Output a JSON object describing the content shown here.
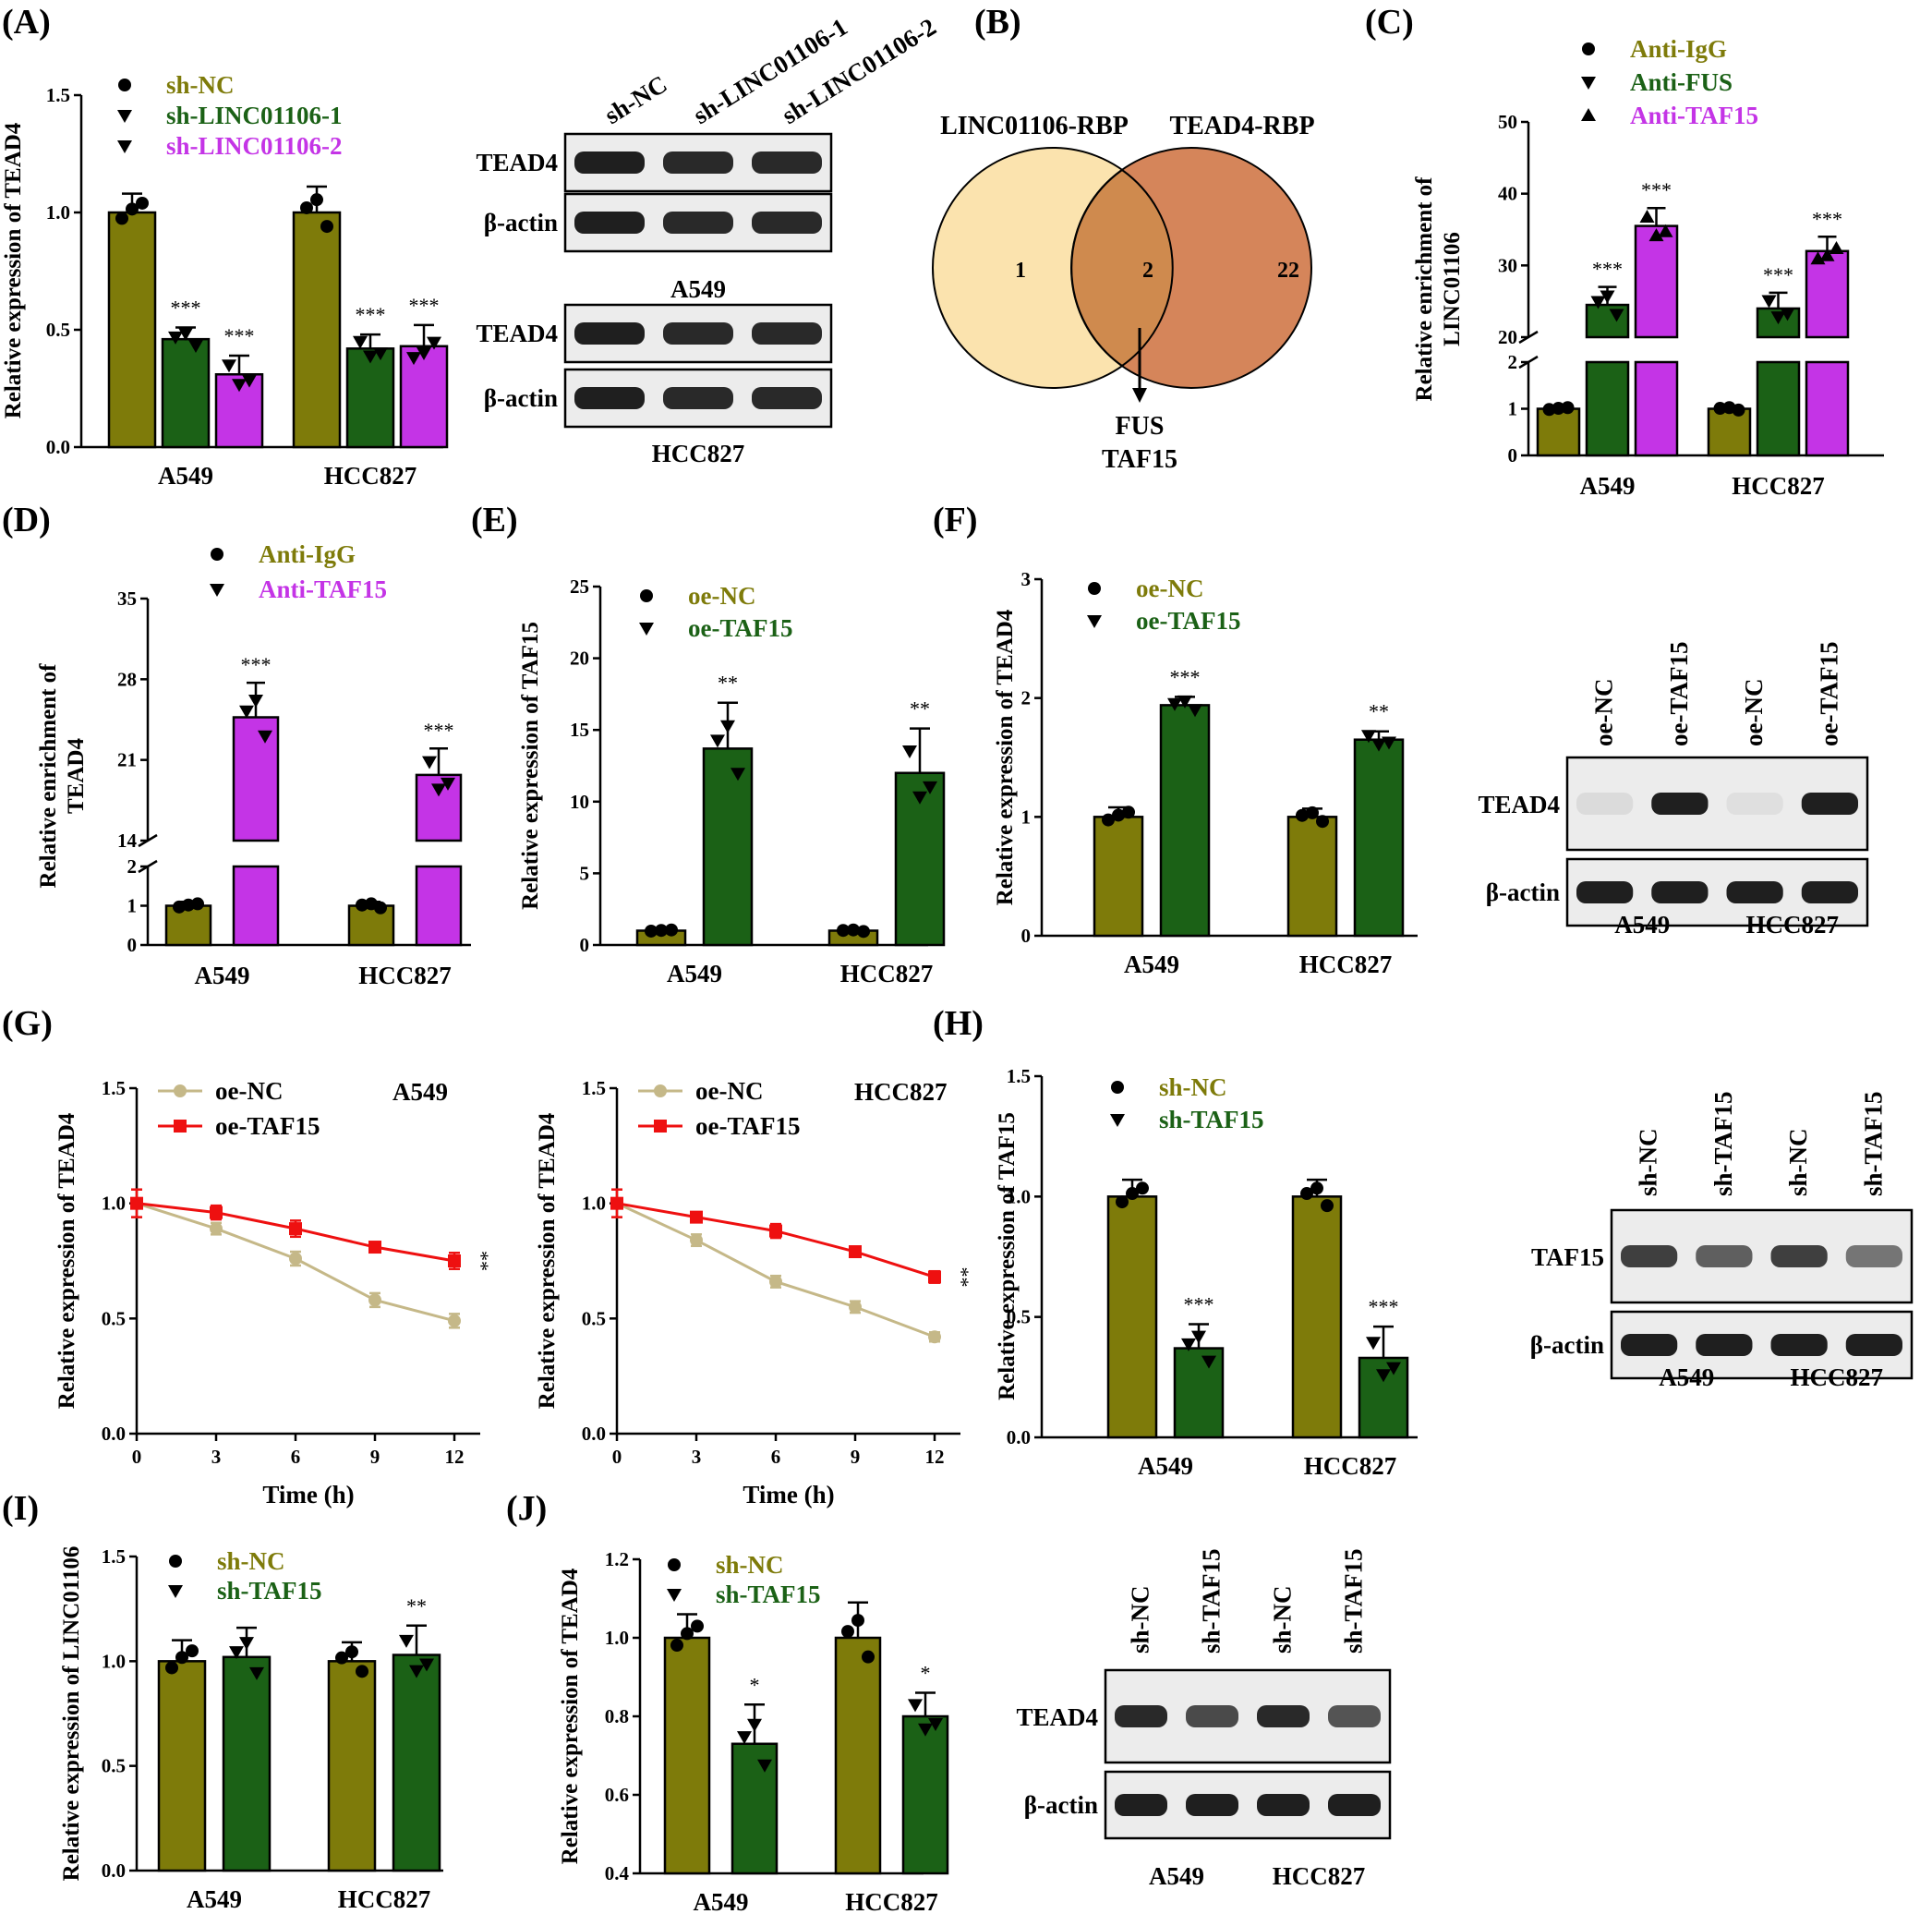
{
  "colors": {
    "olive": "#7e7b0a",
    "green": "#1b6116",
    "purple": "#c434e6",
    "tan": "#c5b888",
    "red": "#ee1010",
    "venn_left": "#fbe3ae",
    "venn_right": "#d5855a"
  },
  "panel_labels": {
    "A": "(A)",
    "B": "(B)",
    "C": "(C)",
    "D": "(D)",
    "E": "(E)",
    "F": "(F)",
    "G": "(G)",
    "H": "(H)",
    "I": "(I)",
    "J": "(J)"
  },
  "venn": {
    "left_title": "LINC01106-RBP",
    "right_title": "TEAD4-RBP",
    "left_only": "1",
    "overlap": "2",
    "right_only": "22",
    "overlap_genes": [
      "FUS",
      "TAF15"
    ]
  },
  "blots": {
    "A": {
      "lanes": [
        "sh-NC",
        "sh-LINC01106-1",
        "sh-LINC01106-2"
      ],
      "groups": [
        {
          "cell": "A549",
          "rows": [
            "TEAD4",
            "β-actin"
          ]
        },
        {
          "cell": "HCC827",
          "rows": [
            "TEAD4",
            "β-actin"
          ]
        }
      ]
    },
    "F": {
      "lanes": [
        "oe-NC",
        "oe-TAF15",
        "oe-NC",
        "oe-TAF15"
      ],
      "rows": [
        "TEAD4",
        "β-actin"
      ],
      "cells": [
        "A549",
        "HCC827"
      ]
    },
    "H": {
      "lanes": [
        "sh-NC",
        "sh-TAF15",
        "sh-NC",
        "sh-TAF15"
      ],
      "rows": [
        "TAF15",
        "β-actin"
      ],
      "cells": [
        "A549",
        "HCC827"
      ]
    },
    "J": {
      "lanes": [
        "sh-NC",
        "sh-TAF15",
        "sh-NC",
        "sh-TAF15"
      ],
      "rows": [
        "TEAD4",
        "β-actin"
      ],
      "cells": [
        "A549",
        "HCC827"
      ]
    }
  },
  "chart_data": [
    {
      "panel": "A",
      "type": "bar",
      "ylabel": "Relative expression of TEAD4",
      "ylim": [
        0,
        1.5
      ],
      "yticks": [
        0.0,
        0.5,
        1.0,
        1.5
      ],
      "categories": [
        "A549",
        "HCC827"
      ],
      "series": [
        {
          "name": "sh-NC",
          "marker": "circle",
          "values": [
            1.0,
            1.0
          ],
          "errors": [
            0.08,
            0.11
          ]
        },
        {
          "name": "sh-LINC01106-1",
          "marker": "tri-down",
          "values": [
            0.46,
            0.42
          ],
          "errors": [
            0.05,
            0.06
          ],
          "sig": [
            "***",
            "***"
          ]
        },
        {
          "name": "sh-LINC01106-2",
          "marker": "tri-down",
          "values": [
            0.31,
            0.43
          ],
          "errors": [
            0.08,
            0.09
          ],
          "sig": [
            "***",
            "***"
          ]
        }
      ]
    },
    {
      "panel": "C",
      "type": "bar",
      "ylabel": [
        "Relative enrichment of",
        "LINC01106"
      ],
      "broken_axis": true,
      "yticks": [
        0,
        1,
        2,
        20,
        30,
        40,
        50
      ],
      "categories": [
        "A549",
        "HCC827"
      ],
      "series": [
        {
          "name": "Anti-IgG",
          "marker": "circle",
          "values": [
            1.0,
            1.0
          ],
          "errors": [
            0.05,
            0.05
          ]
        },
        {
          "name": "Anti-FUS",
          "marker": "tri-down",
          "values": [
            24.5,
            24.0
          ],
          "errors": [
            2.5,
            2.2
          ],
          "sig": [
            "***",
            "***"
          ]
        },
        {
          "name": "Anti-TAF15",
          "marker": "tri-up",
          "values": [
            35.5,
            32.0
          ],
          "errors": [
            2.5,
            2.0
          ],
          "sig": [
            "***",
            "***"
          ]
        }
      ]
    },
    {
      "panel": "D",
      "type": "bar",
      "ylabel": [
        "Relative enrichment of",
        "TEAD4"
      ],
      "broken_axis": true,
      "yticks": [
        0,
        1,
        2,
        14,
        21,
        28,
        35
      ],
      "categories": [
        "A549",
        "HCC827"
      ],
      "series": [
        {
          "name": "Anti-IgG",
          "marker": "circle",
          "values": [
            1.0,
            1.0
          ],
          "errors": [
            0.1,
            0.1
          ]
        },
        {
          "name": "Anti-TAF15",
          "marker": "tri-down",
          "values": [
            24.7,
            19.7
          ],
          "errors": [
            3.0,
            2.3
          ],
          "sig": [
            "***",
            "***"
          ]
        }
      ]
    },
    {
      "panel": "E",
      "type": "bar",
      "ylabel": "Relative expression of TAF15",
      "ylim": [
        0,
        25
      ],
      "yticks": [
        0,
        5,
        10,
        15,
        20,
        25
      ],
      "categories": [
        "A549",
        "HCC827"
      ],
      "series": [
        {
          "name": "oe-NC",
          "marker": "circle",
          "values": [
            1.0,
            1.0
          ],
          "errors": [
            0.1,
            0.1
          ]
        },
        {
          "name": "oe-TAF15",
          "marker": "tri-down",
          "values": [
            13.7,
            12.0
          ],
          "errors": [
            3.2,
            3.1
          ],
          "sig": [
            "**",
            "**"
          ]
        }
      ]
    },
    {
      "panel": "F",
      "type": "bar",
      "ylabel": "Relative expression of TEAD4",
      "ylim": [
        0,
        3
      ],
      "yticks": [
        0,
        1,
        2,
        3
      ],
      "categories": [
        "A549",
        "HCC827"
      ],
      "series": [
        {
          "name": "oe-NC",
          "marker": "circle",
          "values": [
            1.0,
            1.0
          ],
          "errors": [
            0.08,
            0.07
          ]
        },
        {
          "name": "oe-TAF15",
          "marker": "tri-down",
          "values": [
            1.94,
            1.65
          ],
          "errors": [
            0.07,
            0.07
          ],
          "sig": [
            "***",
            "**"
          ]
        }
      ]
    },
    {
      "panel": "G1",
      "type": "line",
      "title": "A549",
      "xlabel": "Time (h)",
      "ylabel": "Relative expression of TEAD4",
      "ylim": [
        0,
        1.5
      ],
      "yticks": [
        0.0,
        0.5,
        1.0,
        1.5
      ],
      "x": [
        0,
        3,
        6,
        9,
        12
      ],
      "series": [
        {
          "name": "oe-NC",
          "values": [
            1.0,
            0.89,
            0.76,
            0.58,
            0.49
          ],
          "errors": [
            0.06,
            0.025,
            0.03,
            0.03,
            0.03
          ]
        },
        {
          "name": "oe-TAF15",
          "values": [
            1.0,
            0.96,
            0.89,
            0.81,
            0.75
          ],
          "errors": [
            0.06,
            0.03,
            0.035,
            0.02,
            0.035
          ],
          "sig": "**"
        }
      ]
    },
    {
      "panel": "G2",
      "type": "line",
      "title": "HCC827",
      "xlabel": "Time (h)",
      "ylabel": "Relative expression of TEAD4",
      "ylim": [
        0,
        1.5
      ],
      "yticks": [
        0.0,
        0.5,
        1.0,
        1.5
      ],
      "x": [
        0,
        3,
        6,
        9,
        12
      ],
      "series": [
        {
          "name": "oe-NC",
          "values": [
            1.0,
            0.84,
            0.66,
            0.55,
            0.42
          ],
          "errors": [
            0.06,
            0.025,
            0.025,
            0.025,
            0.02
          ]
        },
        {
          "name": "oe-TAF15",
          "values": [
            1.0,
            0.94,
            0.88,
            0.79,
            0.68
          ],
          "errors": [
            0.06,
            0.015,
            0.03,
            0.02,
            0.025
          ],
          "sig": "**"
        }
      ]
    },
    {
      "panel": "H",
      "type": "bar",
      "ylabel": "Relative expression of TAF15",
      "ylim": [
        0,
        1.5
      ],
      "yticks": [
        0.0,
        0.5,
        1.0,
        1.5
      ],
      "categories": [
        "A549",
        "HCC827"
      ],
      "series": [
        {
          "name": "sh-NC",
          "marker": "circle",
          "values": [
            1.0,
            1.0
          ],
          "errors": [
            0.07,
            0.07
          ]
        },
        {
          "name": "sh-TAF15",
          "marker": "tri-down",
          "values": [
            0.37,
            0.33
          ],
          "errors": [
            0.1,
            0.13
          ],
          "sig": [
            "***",
            "***"
          ]
        }
      ]
    },
    {
      "panel": "I",
      "type": "bar",
      "ylabel": "Relative expression of LINC01106",
      "ylim": [
        0,
        1.5
      ],
      "yticks": [
        0.0,
        0.5,
        1.0,
        1.5
      ],
      "categories": [
        "A549",
        "HCC827"
      ],
      "series": [
        {
          "name": "sh-NC",
          "marker": "circle",
          "values": [
            1.0,
            1.0
          ],
          "errors": [
            0.1,
            0.09
          ]
        },
        {
          "name": "sh-TAF15",
          "marker": "tri-down",
          "values": [
            1.02,
            1.03
          ],
          "errors": [
            0.14,
            0.14
          ],
          "sig": [
            "",
            "**"
          ]
        }
      ]
    },
    {
      "panel": "J",
      "type": "bar",
      "ylabel": "Relative expression of TEAD4",
      "ylim": [
        0.4,
        1.2
      ],
      "yticks": [
        0.4,
        0.6,
        0.8,
        1.0,
        1.2
      ],
      "categories": [
        "A549",
        "HCC827"
      ],
      "series": [
        {
          "name": "sh-NC",
          "marker": "circle",
          "values": [
            1.0,
            1.0
          ],
          "errors": [
            0.06,
            0.09
          ]
        },
        {
          "name": "sh-TAF15",
          "marker": "tri-down",
          "values": [
            0.73,
            0.8
          ],
          "errors": [
            0.1,
            0.06
          ],
          "sig": [
            "*",
            "*"
          ]
        }
      ]
    }
  ]
}
